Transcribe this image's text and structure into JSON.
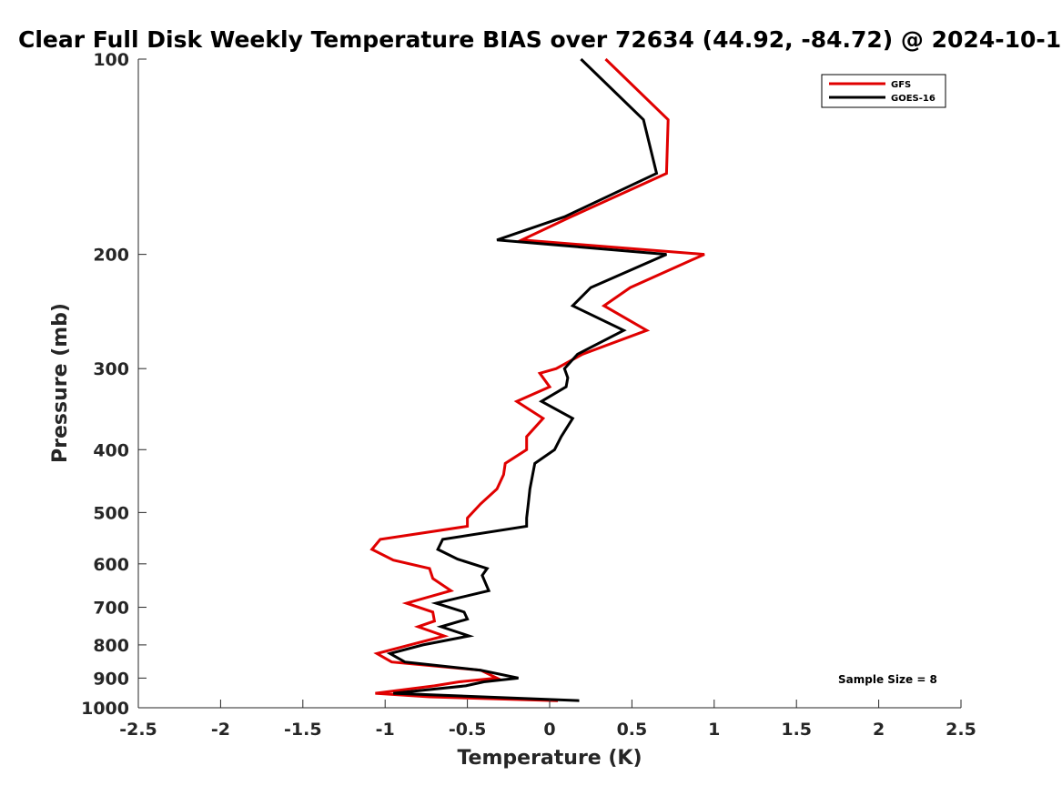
{
  "chart_data": {
    "type": "line",
    "title": "Clear Full Disk Weekly Temperature BIAS over 72634 (44.92, -84.72) @ 2024-10-1",
    "xlabel": "Temperature (K)",
    "ylabel": "Pressure (mb)",
    "xlim": [
      -2.5,
      2.5
    ],
    "ylim": [
      100,
      1000
    ],
    "y_scale": "log",
    "y_reversed": true,
    "x_ticks": [
      -2.5,
      -2,
      -1.5,
      -1,
      -0.5,
      0,
      0.5,
      1,
      1.5,
      2,
      2.5
    ],
    "x_tick_labels": [
      "-2.5",
      "-2",
      "-1.5",
      "-1",
      "-0.5",
      "0",
      "0.5",
      "1",
      "1.5",
      "2",
      "2.5"
    ],
    "y_ticks": [
      100,
      200,
      300,
      400,
      500,
      600,
      700,
      800,
      900,
      1000
    ],
    "y_tick_labels": [
      "100",
      "200",
      "300",
      "400",
      "500",
      "600",
      "700",
      "800",
      "900",
      "1000"
    ],
    "legend_position": "top-right",
    "annotation": "Sample Size = 8",
    "series": [
      {
        "name": "GFS",
        "color": "#e00000",
        "points": [
          [
            0.34,
            100
          ],
          [
            0.72,
            124
          ],
          [
            0.71,
            150
          ],
          [
            0.13,
            175
          ],
          [
            -0.17,
            190
          ],
          [
            0.94,
            200
          ],
          [
            0.49,
            225
          ],
          [
            0.33,
            240
          ],
          [
            0.59,
            262
          ],
          [
            0.2,
            285
          ],
          [
            0.04,
            300
          ],
          [
            -0.06,
            305
          ],
          [
            0.0,
            320
          ],
          [
            -0.2,
            337
          ],
          [
            -0.04,
            358
          ],
          [
            -0.14,
            382
          ],
          [
            -0.14,
            400
          ],
          [
            -0.27,
            420
          ],
          [
            -0.28,
            437
          ],
          [
            -0.32,
            460
          ],
          [
            -0.42,
            485
          ],
          [
            -0.5,
            510
          ],
          [
            -0.5,
            525
          ],
          [
            -1.03,
            550
          ],
          [
            -1.08,
            570
          ],
          [
            -0.95,
            592
          ],
          [
            -0.73,
            610
          ],
          [
            -0.71,
            632
          ],
          [
            -0.6,
            660
          ],
          [
            -0.87,
            690
          ],
          [
            -0.71,
            712
          ],
          [
            -0.7,
            735
          ],
          [
            -0.8,
            750
          ],
          [
            -0.64,
            775
          ],
          [
            -0.85,
            800
          ],
          [
            -1.05,
            825
          ],
          [
            -0.96,
            850
          ],
          [
            -0.42,
            875
          ],
          [
            -0.32,
            900
          ],
          [
            -0.55,
            912
          ],
          [
            -0.7,
            925
          ],
          [
            -1.06,
            950
          ],
          [
            -0.73,
            962
          ],
          [
            0.05,
            975
          ]
        ]
      },
      {
        "name": "GOES-16",
        "color": "#000000",
        "points": [
          [
            0.19,
            100
          ],
          [
            0.57,
            124
          ],
          [
            0.65,
            150
          ],
          [
            0.09,
            175
          ],
          [
            -0.32,
            190
          ],
          [
            0.71,
            200
          ],
          [
            0.25,
            225
          ],
          [
            0.14,
            240
          ],
          [
            0.45,
            262
          ],
          [
            0.17,
            285
          ],
          [
            0.09,
            300
          ],
          [
            0.11,
            310
          ],
          [
            0.1,
            320
          ],
          [
            -0.05,
            337
          ],
          [
            0.14,
            358
          ],
          [
            0.07,
            382
          ],
          [
            0.03,
            400
          ],
          [
            -0.09,
            420
          ],
          [
            -0.12,
            460
          ],
          [
            -0.13,
            485
          ],
          [
            -0.14,
            510
          ],
          [
            -0.14,
            525
          ],
          [
            -0.65,
            550
          ],
          [
            -0.68,
            570
          ],
          [
            -0.56,
            590
          ],
          [
            -0.38,
            610
          ],
          [
            -0.41,
            625
          ],
          [
            -0.37,
            660
          ],
          [
            -0.69,
            690
          ],
          [
            -0.52,
            712
          ],
          [
            -0.5,
            730
          ],
          [
            -0.66,
            750
          ],
          [
            -0.49,
            775
          ],
          [
            -0.77,
            800
          ],
          [
            -0.97,
            825
          ],
          [
            -0.88,
            850
          ],
          [
            -0.42,
            875
          ],
          [
            -0.19,
            900
          ],
          [
            -0.4,
            912
          ],
          [
            -0.51,
            925
          ],
          [
            -0.95,
            950
          ],
          [
            0.18,
            975
          ]
        ]
      }
    ]
  }
}
